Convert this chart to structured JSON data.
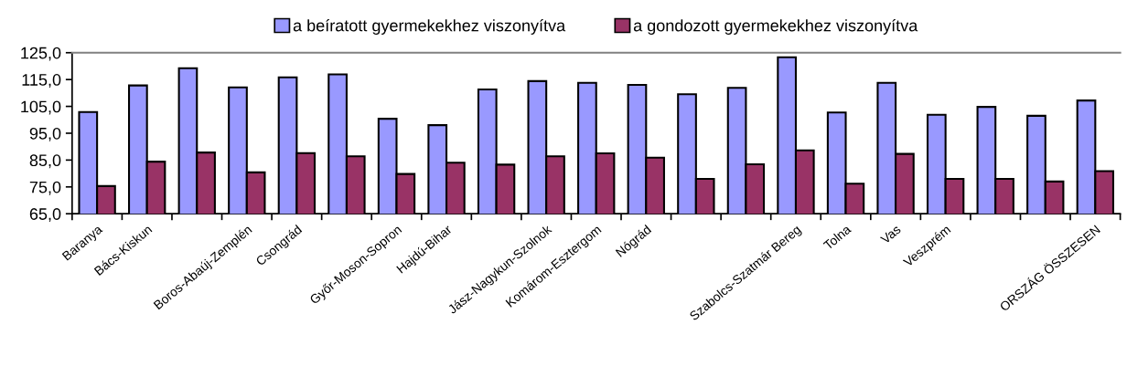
{
  "chart_data": {
    "type": "bar",
    "categories": [
      "Baranya",
      "Bács-Kiskun",
      null,
      "Boros-Abaúj-Zemplén",
      "Csongrád",
      null,
      "Győr-Moson-Sopron",
      "Hajdú-Bihar",
      null,
      "Jász-Nagykun-Szolnok",
      "Komárom-Esztergom",
      "Nógrád",
      null,
      null,
      "Szabolcs-Szatmár Bereg",
      "Tolna",
      "Vas",
      "Veszprém",
      null,
      null,
      "ORSZÁG ÖSSZESEN"
    ],
    "series": [
      {
        "name": "a beíratott gyermekekhez viszonyítva",
        "color": "#9999ff",
        "values": [
          102.9,
          112.8,
          119.2,
          112.1,
          115.8,
          116.9,
          100.4,
          98.0,
          111.3,
          114.4,
          113.8,
          113.0,
          109.5,
          111.9,
          123.3,
          102.7,
          113.8,
          101.9,
          104.8,
          101.5,
          107.2
        ]
      },
      {
        "name": "a gondozott gyermekekhez viszonyítva",
        "color": "#993366",
        "values": [
          75.3,
          84.4,
          87.8,
          80.4,
          87.6,
          86.4,
          79.8,
          84.0,
          83.3,
          86.4,
          87.5,
          85.9,
          78.0,
          83.4,
          88.6,
          76.2,
          87.3,
          78.0,
          78.0,
          77.0,
          80.9
        ]
      }
    ],
    "ylim": [
      65,
      125
    ],
    "yticks": [
      {
        "value": 65,
        "label": "65,0"
      },
      {
        "value": 75,
        "label": "75,0"
      },
      {
        "value": 85,
        "label": "85,0"
      },
      {
        "value": 95,
        "label": "95,0"
      },
      {
        "value": 105,
        "label": "105,0"
      },
      {
        "value": 115,
        "label": "115,0"
      },
      {
        "value": 125,
        "label": "125,0"
      }
    ],
    "grid": false,
    "legend": "top"
  }
}
